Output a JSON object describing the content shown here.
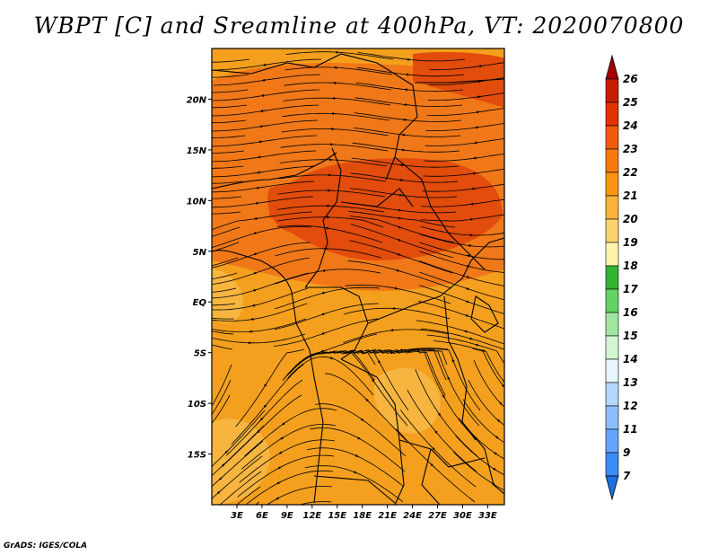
{
  "title": "WBPT [C] and Sreamline at 400hPa, VT: 2020070800",
  "credit": "GrADS: IGES/COLA",
  "lat_labels": [
    "20N",
    "15N",
    "10N",
    "5N",
    "EQ",
    "5S",
    "10S",
    "15S"
  ],
  "lon_labels": [
    "3E",
    "6E",
    "9E",
    "12E",
    "15E",
    "18E",
    "21E",
    "24E",
    "27E",
    "30E",
    "33E"
  ],
  "colorbar": {
    "levels": [
      "26",
      "25",
      "24",
      "23",
      "22",
      "21",
      "20",
      "19",
      "18",
      "17",
      "16",
      "15",
      "14",
      "13",
      "12",
      "11",
      "9",
      "7"
    ],
    "colors": [
      "#a50000",
      "#c81e00",
      "#e13200",
      "#f05a0f",
      "#f77a0f",
      "#fa960f",
      "#fab43c",
      "#fad26e",
      "#fff5aa",
      "#32b432",
      "#64d264",
      "#a0e6a0",
      "#d2f5d2",
      "#e6f5ff",
      "#b4d7ff",
      "#8cbeff",
      "#64a5ff",
      "#3c8cf5",
      "#1e6ee6"
    ]
  },
  "field": {
    "palette": {
      "hot": "#e24c0c",
      "warm": "#f07818",
      "mid": "#f4a01e",
      "cool": "#f7b540"
    }
  }
}
